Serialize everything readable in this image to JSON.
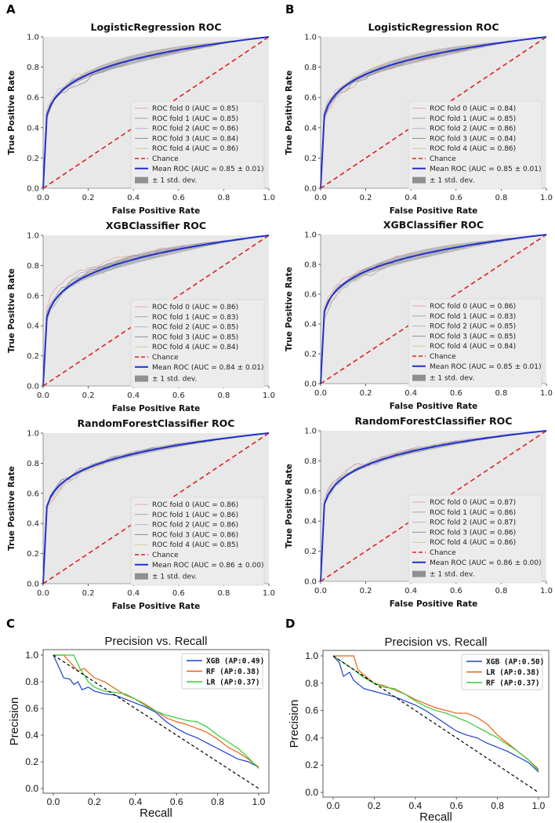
{
  "panel_labels": [
    "A",
    "B",
    "C",
    "D"
  ],
  "chart_data": [
    {
      "panel": "A",
      "type": "line",
      "title": "LogisticRegression ROC",
      "xlabel": "False Positive Rate",
      "ylabel": "True Positive Rate",
      "xlim": [
        0,
        1
      ],
      "ylim": [
        0,
        1
      ],
      "xticks": [
        "0.0",
        "0.2",
        "0.4",
        "0.6",
        "0.8",
        "1.0"
      ],
      "yticks": [
        "0.0",
        "0.2",
        "0.4",
        "0.6",
        "0.8",
        "1.0"
      ],
      "legend": [
        "ROC fold 0 (AUC = 0.85)",
        "ROC fold 1 (AUC = 0.85)",
        "ROC fold 2 (AUC = 0.86)",
        "ROC fold 3 (AUC = 0.84)",
        "ROC fold 4 (AUC = 0.86)",
        "Chance",
        "Mean ROC (AUC = 0.85 ± 0.01)",
        "± 1 std. dev."
      ],
      "mean_auc": 0.85,
      "std": 0.01
    },
    {
      "panel": "B",
      "type": "line",
      "title": "LogisticRegression ROC",
      "xlabel": "False Positive Rate",
      "ylabel": "True Positive Rate",
      "xlim": [
        0,
        1
      ],
      "ylim": [
        0,
        1
      ],
      "xticks": [
        "0.0",
        "0.2",
        "0.4",
        "0.6",
        "0.8",
        "1.0"
      ],
      "yticks": [
        "0.0",
        "0.2",
        "0.4",
        "0.6",
        "0.8",
        "1.0"
      ],
      "legend": [
        "ROC fold 0 (AUC = 0.84)",
        "ROC fold 1 (AUC = 0.85)",
        "ROC fold 2 (AUC = 0.86)",
        "ROC fold 3 (AUC = 0.84)",
        "ROC fold 4 (AUC = 0.86)",
        "Chance",
        "Mean ROC (AUC = 0.85 ± 0.01)",
        "± 1 std. dev."
      ],
      "mean_auc": 0.85,
      "std": 0.01
    },
    {
      "panel": "A",
      "type": "line",
      "title": "XGBClassifier ROC",
      "xlabel": "False Positive Rate",
      "ylabel": "True Positive Rate",
      "xlim": [
        0,
        1
      ],
      "ylim": [
        0,
        1
      ],
      "xticks": [
        "0.0",
        "0.2",
        "0.4",
        "0.6",
        "0.8",
        "1.0"
      ],
      "yticks": [
        "0.0",
        "0.2",
        "0.4",
        "0.6",
        "0.8",
        "1.0"
      ],
      "legend": [
        "ROC fold 0 (AUC = 0.86)",
        "ROC fold 1 (AUC = 0.83)",
        "ROC fold 2 (AUC = 0.85)",
        "ROC fold 3 (AUC = 0.85)",
        "ROC fold 4 (AUC = 0.84)",
        "Chance",
        "Mean ROC (AUC = 0.84 ± 0.01)",
        "± 1 std. dev."
      ],
      "mean_auc": 0.84,
      "std": 0.01
    },
    {
      "panel": "B",
      "type": "line",
      "title": "XGBClassifier ROC",
      "xlabel": "False Positive Rate",
      "ylabel": "True Positive Rate",
      "xlim": [
        0,
        1
      ],
      "ylim": [
        0,
        1
      ],
      "xticks": [
        "0.0",
        "0.2",
        "0.4",
        "0.6",
        "0.8",
        "1.0"
      ],
      "yticks": [
        "0.0",
        "0.2",
        "0.4",
        "0.6",
        "0.8",
        "1.0"
      ],
      "legend": [
        "ROC fold 0 (AUC = 0.86)",
        "ROC fold 1 (AUC = 0.83)",
        "ROC fold 2 (AUC = 0.85)",
        "ROC fold 3 (AUC = 0.85)",
        "ROC fold 4 (AUC = 0.84)",
        "Chance",
        "Mean ROC (AUC = 0.85 ± 0.01)",
        "± 1 std. dev."
      ],
      "mean_auc": 0.85,
      "std": 0.01
    },
    {
      "panel": "A",
      "type": "line",
      "title": "RandomForestClassifier ROC",
      "xlabel": "False Positive Rate",
      "ylabel": "True Positive Rate",
      "xlim": [
        0,
        1
      ],
      "ylim": [
        0,
        1
      ],
      "xticks": [
        "0.0",
        "0.2",
        "0.4",
        "0.6",
        "0.8",
        "1.0"
      ],
      "yticks": [
        "0.0",
        "0.2",
        "0.4",
        "0.6",
        "0.8",
        "1.0"
      ],
      "legend": [
        "ROC fold 0 (AUC = 0.86)",
        "ROC fold 1 (AUC = 0.86)",
        "ROC fold 2 (AUC = 0.86)",
        "ROC fold 3 (AUC = 0.86)",
        "ROC fold 4 (AUC = 0.85)",
        "Chance",
        "Mean ROC (AUC = 0.86 ± 0.00)",
        "± 1 std. dev."
      ],
      "mean_auc": 0.86,
      "std": 0.0
    },
    {
      "panel": "B",
      "type": "line",
      "title": "RandomForestClassifier ROC",
      "xlabel": "False Positive Rate",
      "ylabel": "True Positive Rate",
      "xlim": [
        0,
        1
      ],
      "ylim": [
        0,
        1
      ],
      "xticks": [
        "0.0",
        "0.2",
        "0.4",
        "0.6",
        "0.8",
        "1.0"
      ],
      "yticks": [
        "0.0",
        "0.2",
        "0.4",
        "0.6",
        "0.8",
        "1.0"
      ],
      "legend": [
        "ROC fold 0 (AUC = 0.87)",
        "ROC fold 1 (AUC = 0.86)",
        "ROC fold 2 (AUC = 0.87)",
        "ROC fold 3 (AUC = 0.86)",
        "ROC fold 4 (AUC = 0.86)",
        "Chance",
        "Mean ROC (AUC = 0.86 ± 0.00)",
        "± 1 std. dev."
      ],
      "mean_auc": 0.86,
      "std": 0.0
    },
    {
      "panel": "C",
      "type": "line",
      "title": "Precision vs. Recall",
      "xlabel": "Recall",
      "ylabel": "Precision",
      "xlim": [
        0,
        1
      ],
      "ylim": [
        0,
        1
      ],
      "xticks": [
        "0.0",
        "0.2",
        "0.4",
        "0.6",
        "0.8",
        "1.0"
      ],
      "yticks": [
        "0.0",
        "0.2",
        "0.4",
        "0.6",
        "0.8",
        "1.0"
      ],
      "legend": [
        "XGB (AP:0.49)",
        "RF  (AP:0.38)",
        "LR  (AP:0.37)"
      ],
      "series": [
        {
          "name": "XGB",
          "color": "#1f3fcf",
          "points": [
            [
              0.0,
              1.0
            ],
            [
              0.03,
              0.9
            ],
            [
              0.05,
              0.83
            ],
            [
              0.08,
              0.82
            ],
            [
              0.1,
              0.78
            ],
            [
              0.12,
              0.8
            ],
            [
              0.14,
              0.74
            ],
            [
              0.17,
              0.76
            ],
            [
              0.2,
              0.73
            ],
            [
              0.25,
              0.71
            ],
            [
              0.3,
              0.7
            ],
            [
              0.35,
              0.67
            ],
            [
              0.4,
              0.64
            ],
            [
              0.45,
              0.61
            ],
            [
              0.5,
              0.57
            ],
            [
              0.55,
              0.5
            ],
            [
              0.6,
              0.45
            ],
            [
              0.65,
              0.41
            ],
            [
              0.7,
              0.38
            ],
            [
              0.75,
              0.34
            ],
            [
              0.8,
              0.3
            ],
            [
              0.85,
              0.26
            ],
            [
              0.9,
              0.22
            ],
            [
              0.95,
              0.2
            ],
            [
              1.0,
              0.16
            ]
          ]
        },
        {
          "name": "RF",
          "color": "#e8600f",
          "points": [
            [
              0.0,
              1.0
            ],
            [
              0.05,
              1.0
            ],
            [
              0.08,
              0.95
            ],
            [
              0.12,
              0.88
            ],
            [
              0.15,
              0.9
            ],
            [
              0.2,
              0.83
            ],
            [
              0.25,
              0.8
            ],
            [
              0.3,
              0.75
            ],
            [
              0.35,
              0.7
            ],
            [
              0.4,
              0.67
            ],
            [
              0.45,
              0.63
            ],
            [
              0.5,
              0.58
            ],
            [
              0.55,
              0.53
            ],
            [
              0.6,
              0.5
            ],
            [
              0.65,
              0.48
            ],
            [
              0.7,
              0.45
            ],
            [
              0.75,
              0.42
            ],
            [
              0.8,
              0.37
            ],
            [
              0.85,
              0.31
            ],
            [
              0.9,
              0.27
            ],
            [
              0.95,
              0.22
            ],
            [
              1.0,
              0.16
            ]
          ]
        },
        {
          "name": "LR",
          "color": "#33cc33",
          "points": [
            [
              0.0,
              1.0
            ],
            [
              0.05,
              1.0
            ],
            [
              0.1,
              1.0
            ],
            [
              0.13,
              0.9
            ],
            [
              0.17,
              0.8
            ],
            [
              0.2,
              0.76
            ],
            [
              0.25,
              0.73
            ],
            [
              0.3,
              0.72
            ],
            [
              0.35,
              0.71
            ],
            [
              0.4,
              0.67
            ],
            [
              0.45,
              0.62
            ],
            [
              0.5,
              0.58
            ],
            [
              0.55,
              0.55
            ],
            [
              0.6,
              0.53
            ],
            [
              0.65,
              0.51
            ],
            [
              0.7,
              0.5
            ],
            [
              0.75,
              0.46
            ],
            [
              0.8,
              0.4
            ],
            [
              0.85,
              0.35
            ],
            [
              0.9,
              0.3
            ],
            [
              0.95,
              0.23
            ],
            [
              1.0,
              0.15
            ]
          ]
        },
        {
          "name": "baseline",
          "color": "#000000",
          "points": [
            [
              0.0,
              1.0
            ],
            [
              1.0,
              0.0
            ]
          ]
        }
      ]
    },
    {
      "panel": "D",
      "type": "line",
      "title": "Precision vs. Recall",
      "xlabel": "Recall",
      "ylabel": "Precision",
      "xlim": [
        0,
        1
      ],
      "ylim": [
        0,
        1
      ],
      "xticks": [
        "0.0",
        "0.2",
        "0.4",
        "0.6",
        "0.8",
        "1.0"
      ],
      "yticks": [
        "0.0",
        "0.2",
        "0.4",
        "0.6",
        "0.8",
        "1.0"
      ],
      "legend": [
        "XGB (AP:0.50)",
        "LR  (AP:0.38)",
        "RF  (AP:0.37)"
      ],
      "series": [
        {
          "name": "XGB",
          "color": "#1f3fcf",
          "points": [
            [
              0.0,
              1.0
            ],
            [
              0.03,
              0.95
            ],
            [
              0.05,
              0.85
            ],
            [
              0.08,
              0.88
            ],
            [
              0.1,
              0.82
            ],
            [
              0.15,
              0.76
            ],
            [
              0.2,
              0.74
            ],
            [
              0.25,
              0.72
            ],
            [
              0.3,
              0.7
            ],
            [
              0.35,
              0.67
            ],
            [
              0.4,
              0.64
            ],
            [
              0.45,
              0.6
            ],
            [
              0.5,
              0.55
            ],
            [
              0.55,
              0.5
            ],
            [
              0.6,
              0.45
            ],
            [
              0.65,
              0.42
            ],
            [
              0.7,
              0.4
            ],
            [
              0.75,
              0.36
            ],
            [
              0.8,
              0.33
            ],
            [
              0.85,
              0.3
            ],
            [
              0.9,
              0.26
            ],
            [
              0.95,
              0.22
            ],
            [
              1.0,
              0.15
            ]
          ]
        },
        {
          "name": "LR",
          "color": "#e8600f",
          "points": [
            [
              0.0,
              1.0
            ],
            [
              0.05,
              1.0
            ],
            [
              0.1,
              1.0
            ],
            [
              0.12,
              0.9
            ],
            [
              0.15,
              0.86
            ],
            [
              0.2,
              0.8
            ],
            [
              0.25,
              0.78
            ],
            [
              0.3,
              0.75
            ],
            [
              0.35,
              0.72
            ],
            [
              0.4,
              0.68
            ],
            [
              0.45,
              0.65
            ],
            [
              0.5,
              0.62
            ],
            [
              0.55,
              0.6
            ],
            [
              0.6,
              0.58
            ],
            [
              0.65,
              0.58
            ],
            [
              0.7,
              0.55
            ],
            [
              0.75,
              0.5
            ],
            [
              0.8,
              0.42
            ],
            [
              0.85,
              0.36
            ],
            [
              0.9,
              0.3
            ],
            [
              0.95,
              0.24
            ],
            [
              1.0,
              0.17
            ]
          ]
        },
        {
          "name": "RF",
          "color": "#33cc33",
          "points": [
            [
              0.0,
              1.0
            ],
            [
              0.05,
              0.95
            ],
            [
              0.1,
              0.9
            ],
            [
              0.15,
              0.84
            ],
            [
              0.2,
              0.8
            ],
            [
              0.25,
              0.77
            ],
            [
              0.3,
              0.76
            ],
            [
              0.35,
              0.72
            ],
            [
              0.4,
              0.67
            ],
            [
              0.45,
              0.63
            ],
            [
              0.5,
              0.6
            ],
            [
              0.55,
              0.58
            ],
            [
              0.6,
              0.55
            ],
            [
              0.65,
              0.52
            ],
            [
              0.7,
              0.48
            ],
            [
              0.75,
              0.44
            ],
            [
              0.8,
              0.4
            ],
            [
              0.85,
              0.35
            ],
            [
              0.9,
              0.3
            ],
            [
              0.95,
              0.24
            ],
            [
              1.0,
              0.16
            ]
          ]
        },
        {
          "name": "baseline",
          "color": "#000000",
          "points": [
            [
              0.0,
              1.0
            ],
            [
              1.0,
              0.0
            ]
          ]
        }
      ]
    }
  ],
  "style": {
    "plot_bg": "#e8e8e8",
    "mean_color": "#1f2fd0",
    "chance_color": "#e02020",
    "band_color": "#909090",
    "fold_colors": [
      "#e6a7a0",
      "#9aa7b5",
      "#b7b0d2",
      "#8f8f8f",
      "#d9c596"
    ]
  }
}
